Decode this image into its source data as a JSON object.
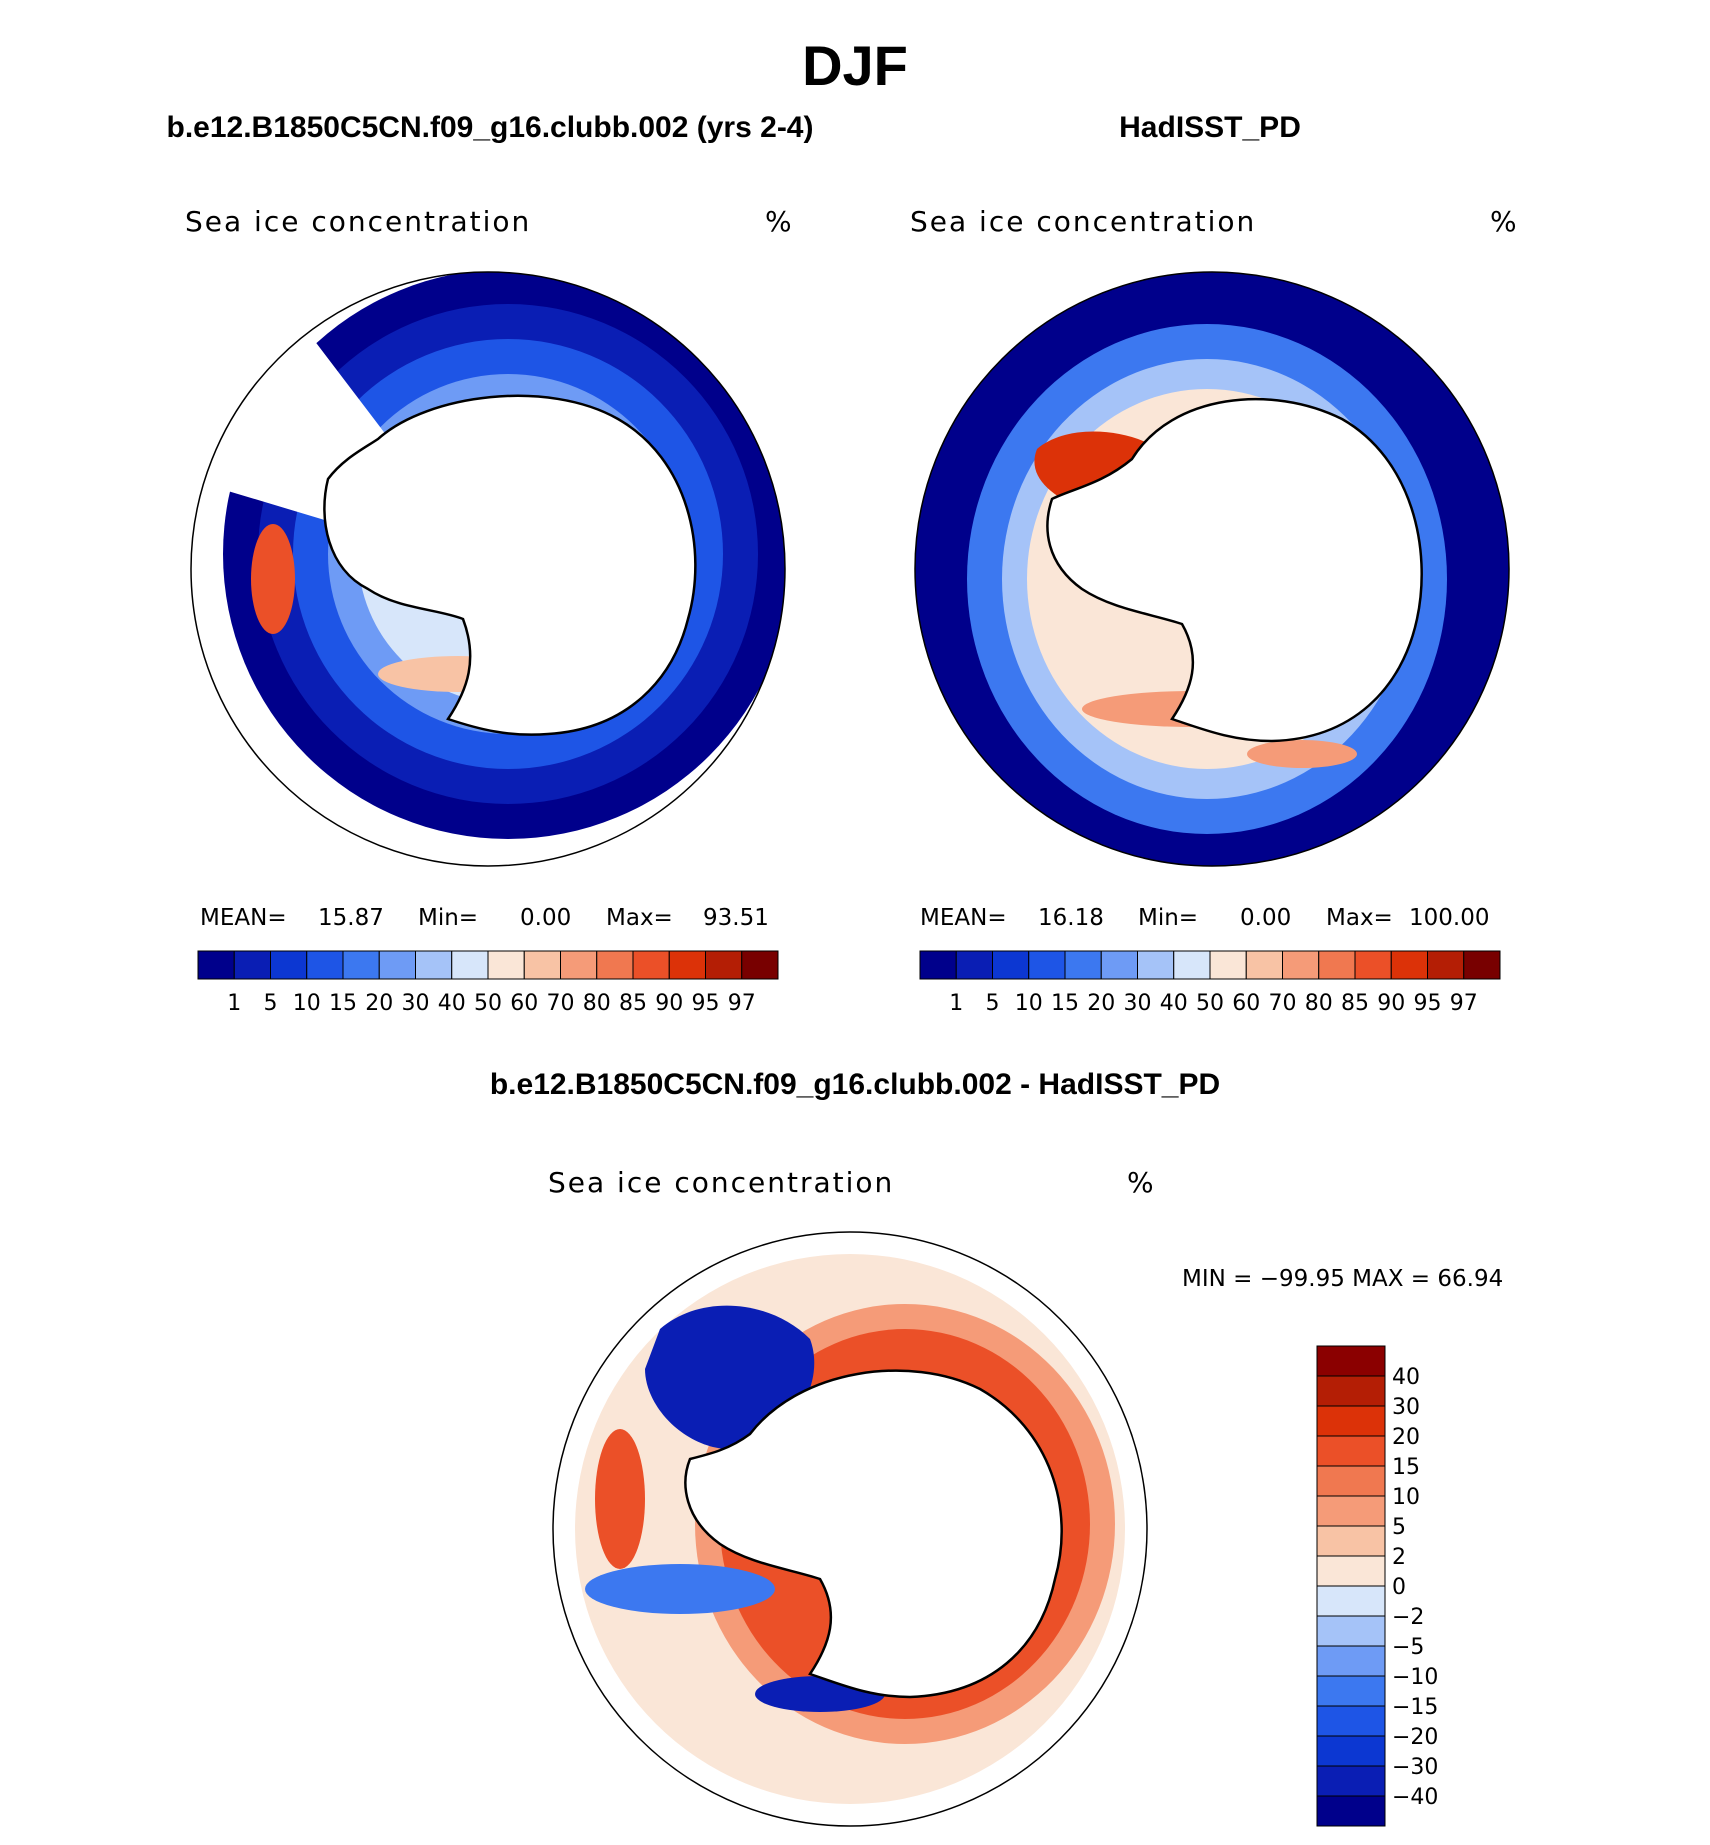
{
  "main_title": "DJF",
  "panels": [
    {
      "title": "b.e12.B1850C5CN.f09_g16.clubb.002 (yrs 2-4)",
      "variable": "Sea ice concentration",
      "units": "%",
      "stats": {
        "mean_label": "MEAN=",
        "mean": "15.87",
        "min_label": "Min=",
        "min": "0.00",
        "max_label": "Max=",
        "max": "93.51"
      }
    },
    {
      "title": "HadISST_PD",
      "variable": "Sea ice concentration",
      "units": "%",
      "stats": {
        "mean_label": "MEAN=",
        "mean": "16.18",
        "min_label": "Min=",
        "min": "0.00",
        "max_label": "Max=",
        "max": "100.00"
      }
    },
    {
      "title": "b.e12.B1850C5CN.f09_g16.clubb.002 - HadISST_PD",
      "variable": "Sea ice concentration",
      "units": "%",
      "range_text": "MIN = −99.95 MAX =   66.94"
    }
  ],
  "chart_data": [
    {
      "type": "heatmap",
      "projection": "south-polar-stereographic",
      "title": "b.e12.B1850C5CN.f09_g16.clubb.002 (yrs 2-4)",
      "variable": "Sea ice concentration",
      "units": "%",
      "mean": 15.87,
      "min": 0.0,
      "max": 93.51,
      "legend_levels": [
        "1",
        "5",
        "10",
        "15",
        "20",
        "30",
        "40",
        "50",
        "60",
        "70",
        "80",
        "85",
        "90",
        "95",
        "97"
      ]
    },
    {
      "type": "heatmap",
      "projection": "south-polar-stereographic",
      "title": "HadISST_PD",
      "variable": "Sea ice concentration",
      "units": "%",
      "mean": 16.18,
      "min": 0.0,
      "max": 100.0,
      "legend_levels": [
        "1",
        "5",
        "10",
        "15",
        "20",
        "30",
        "40",
        "50",
        "60",
        "70",
        "80",
        "85",
        "90",
        "95",
        "97"
      ]
    },
    {
      "type": "heatmap",
      "projection": "south-polar-stereographic",
      "title": "b.e12.B1850C5CN.f09_g16.clubb.002 - HadISST_PD",
      "variable": "Sea ice concentration",
      "units": "%",
      "min": -99.95,
      "max": 66.94,
      "legend_levels": [
        "40",
        "30",
        "20",
        "15",
        "10",
        "5",
        "2",
        "0",
        "−2",
        "−5",
        "−10",
        "−15",
        "−20",
        "−30",
        "−40"
      ]
    }
  ],
  "colors": {
    "conc_scale": [
      "#00008b",
      "#0a1eb4",
      "#0c37d2",
      "#1e55e6",
      "#3c78f0",
      "#6e9bf5",
      "#a5c3f8",
      "#d7e6fa",
      "#fae6d7",
      "#f8c3a5",
      "#f59b78",
      "#f07850",
      "#eb5028",
      "#dc3208",
      "#b41e05",
      "#780000"
    ],
    "diff_scale": [
      "#8b0000",
      "#b41e05",
      "#dc3208",
      "#eb5028",
      "#f07850",
      "#f59b78",
      "#f8c3a5",
      "#fae6d7",
      "#d7e6fa",
      "#a5c3f8",
      "#6e9bf5",
      "#3c78f0",
      "#1e55e6",
      "#0c37d2",
      "#0a1eb4",
      "#00008b"
    ],
    "ocean_a": "#0a23b4",
    "ocean_b": "#00008b",
    "ocean_c": "#fae6d7",
    "ice_mid": "#6e9bf5",
    "ice_warm": "#f59b78",
    "warm_strong": "#dc3208",
    "land": "#ffffff",
    "outline": "#000000"
  }
}
